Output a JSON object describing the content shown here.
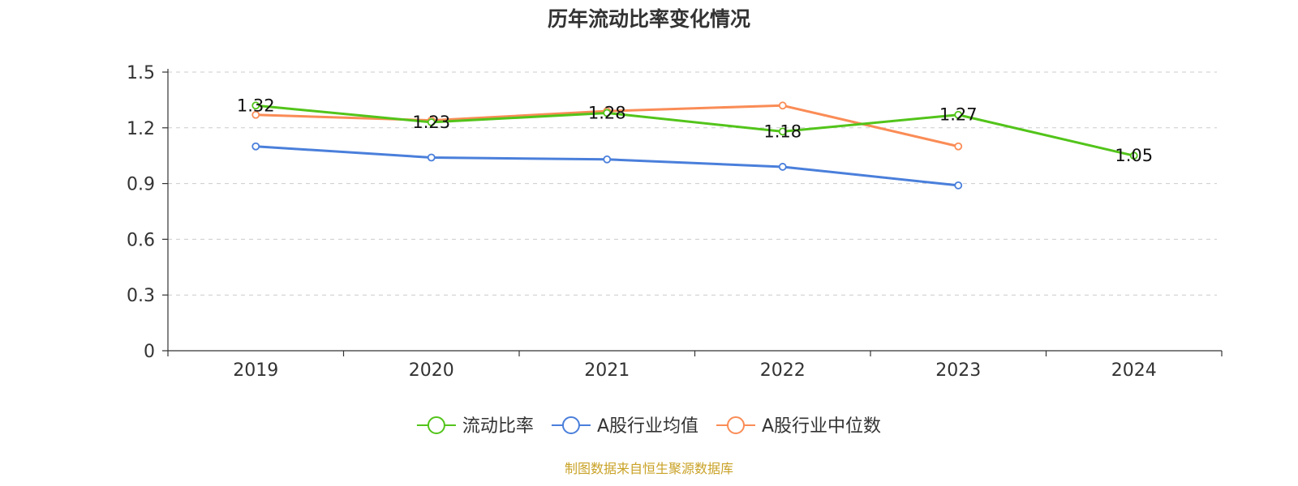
{
  "chart_data": {
    "type": "line",
    "title": "历年流动比率变化情况",
    "categories": [
      "2019",
      "2020",
      "2021",
      "2022",
      "2023",
      "2024"
    ],
    "ylim": [
      0,
      1.5
    ],
    "yticks": [
      "0",
      "0.3",
      "0.6",
      "0.9",
      "1.2",
      "1.5"
    ],
    "grid": "horizontal dashed",
    "legend_position": "bottom-center",
    "series": [
      {
        "name": "流动比率",
        "color": "#52c41a",
        "values": [
          1.32,
          1.23,
          1.28,
          1.18,
          1.27,
          1.05
        ],
        "labels": [
          "1.32",
          "1.23",
          "1.28",
          "1.18",
          "1.27",
          "1.05"
        ]
      },
      {
        "name": "A股行业均值",
        "color": "#4a7fdb",
        "values": [
          1.1,
          1.04,
          1.03,
          0.99,
          0.89,
          null
        ]
      },
      {
        "name": "A股行业中位数",
        "color": "#fa8c56",
        "values": [
          1.27,
          1.24,
          1.29,
          1.32,
          1.1,
          null
        ]
      }
    ]
  },
  "source": "制图数据来自恒生聚源数据库"
}
